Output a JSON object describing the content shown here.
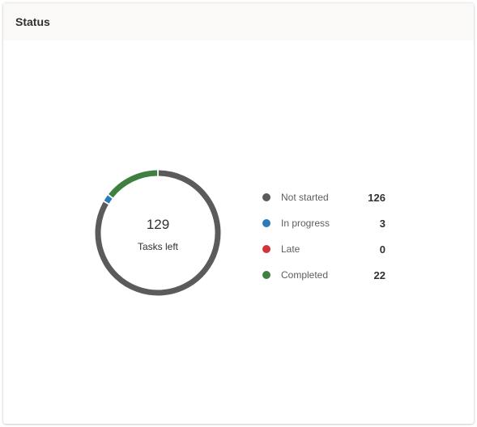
{
  "card": {
    "title": "Status"
  },
  "summary": {
    "value": "129",
    "label": "Tasks left"
  },
  "legend": [
    {
      "label": "Not started",
      "value": "126",
      "color": "#5b5b5b"
    },
    {
      "label": "In progress",
      "value": "3",
      "color": "#2b7bb9"
    },
    {
      "label": "Late",
      "value": "0",
      "color": "#d13438"
    },
    {
      "label": "Completed",
      "value": "22",
      "color": "#3f7f3f"
    }
  ],
  "chart_data": {
    "type": "pie",
    "categories": [
      "Not started",
      "In progress",
      "Late",
      "Completed"
    ],
    "values": [
      126,
      3,
      0,
      22
    ],
    "colors": [
      "#5b5b5b",
      "#2b7bb9",
      "#d13438",
      "#3f7f3f"
    ],
    "title": "",
    "style": "donut",
    "start": "top",
    "direction": "clockwise"
  }
}
